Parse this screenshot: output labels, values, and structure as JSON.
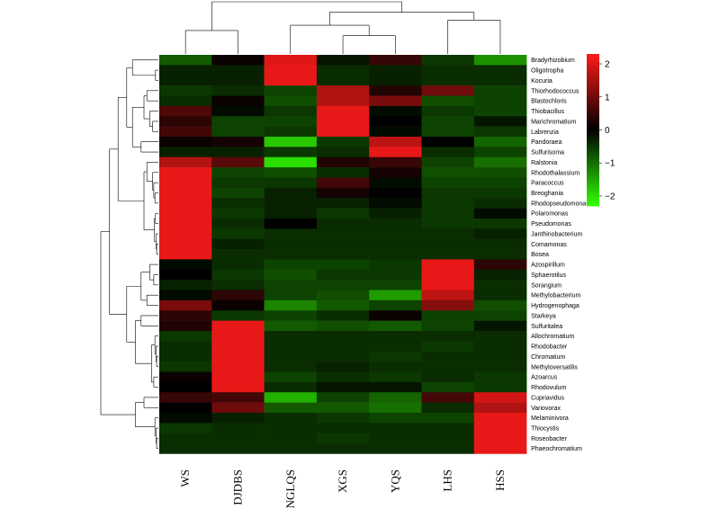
{
  "chart_data": {
    "type": "heatmap",
    "columns": [
      "WS",
      "DJDBS",
      "NGLQS",
      "XGS",
      "YQS",
      "LHS",
      "HSS"
    ],
    "rows": [
      "Bradyrhizobium",
      "Oligotropha",
      "Kocuria",
      "Thiorhodococcus",
      "Blastochloris",
      "Thiobacillus",
      "Marichromatium",
      "Labrenzia",
      "Pandoraea",
      "Sulfurisoma",
      "Ralstonia",
      "Rhodothalassium",
      "Paracoccus",
      "Breoghania",
      "Rhodopseudomonas",
      "Polaromonas",
      "Pseudomonas",
      "Janthinobacterium",
      "Comamonas",
      "Bosea",
      "Azospirillum",
      "Sphaerotilus",
      "Sorangium",
      "Methylobacterium",
      "Hydrogenophaga",
      "Starkeya",
      "Sulfuritalea",
      "Allochromatium",
      "Rhodobacter",
      "Chromatium",
      "Methyloversatilis",
      "Azoarcus",
      "Rhodovulum",
      "Cupriavidus",
      "Variovorax",
      "Melaminivora",
      "Thiocystis",
      "Roseobacter",
      "Phaeochromatium"
    ],
    "values": [
      [
        -0.8,
        0.1,
        2.0,
        -0.2,
        0.5,
        -0.5,
        -1.3
      ],
      [
        -0.3,
        -0.3,
        2.1,
        -0.4,
        -0.3,
        -0.4,
        -0.4
      ],
      [
        -0.3,
        -0.3,
        2.1,
        -0.4,
        -0.3,
        -0.4,
        -0.4
      ],
      [
        -0.5,
        -0.4,
        -0.6,
        1.6,
        0.3,
        1.0,
        -0.6
      ],
      [
        -0.4,
        0.1,
        -0.7,
        1.6,
        1.1,
        -0.7,
        -0.6
      ],
      [
        0.7,
        -0.1,
        -0.5,
        2.1,
        -0.1,
        -0.5,
        -0.6
      ],
      [
        0.4,
        -0.6,
        -0.6,
        2.1,
        0.0,
        -0.6,
        -0.2
      ],
      [
        0.6,
        -0.6,
        -0.5,
        2.1,
        -0.1,
        -0.6,
        -0.5
      ],
      [
        0.1,
        0.2,
        -1.8,
        -0.5,
        1.7,
        0.0,
        -0.9
      ],
      [
        -0.3,
        -0.3,
        -0.5,
        -0.4,
        2.1,
        -0.4,
        -0.6
      ],
      [
        1.6,
        0.8,
        -2.0,
        0.3,
        0.5,
        -0.6,
        -1.0
      ],
      [
        2.1,
        -0.6,
        -0.7,
        -0.4,
        0.2,
        -0.7,
        -0.7
      ],
      [
        2.1,
        -0.5,
        -0.5,
        0.6,
        -0.1,
        -0.6,
        -0.6
      ],
      [
        2.1,
        -0.6,
        -0.3,
        0.2,
        0.0,
        -0.5,
        -0.5
      ],
      [
        2.1,
        -0.4,
        -0.3,
        -0.3,
        -0.1,
        -0.5,
        -0.4
      ],
      [
        2.1,
        -0.5,
        -0.3,
        -0.5,
        -0.3,
        -0.5,
        -0.1
      ],
      [
        2.1,
        -0.4,
        0.0,
        -0.4,
        -0.4,
        -0.5,
        -0.5
      ],
      [
        2.1,
        -0.5,
        -0.4,
        -0.4,
        -0.4,
        -0.4,
        -0.3
      ],
      [
        2.1,
        -0.3,
        -0.4,
        -0.4,
        -0.4,
        -0.4,
        -0.4
      ],
      [
        2.1,
        -0.4,
        -0.4,
        -0.4,
        -0.4,
        -0.4,
        -0.4
      ],
      [
        -0.1,
        -0.4,
        -0.6,
        -0.6,
        -0.5,
        2.1,
        0.4
      ],
      [
        0.0,
        -0.5,
        -0.7,
        -0.5,
        -0.5,
        2.1,
        -0.3
      ],
      [
        -0.3,
        -0.4,
        -0.6,
        -0.6,
        -0.6,
        2.1,
        -0.4
      ],
      [
        -0.1,
        0.4,
        -0.6,
        -0.7,
        -1.4,
        1.7,
        -0.4
      ],
      [
        1.1,
        0.1,
        -1.2,
        -0.8,
        -0.6,
        1.2,
        -0.7
      ],
      [
        0.4,
        -0.5,
        -0.6,
        -0.4,
        0.1,
        -0.6,
        -0.6
      ],
      [
        0.3,
        2.1,
        -0.8,
        -0.7,
        -0.8,
        -0.6,
        -0.2
      ],
      [
        -0.5,
        2.1,
        -0.4,
        -0.4,
        -0.4,
        -0.4,
        -0.4
      ],
      [
        -0.4,
        2.1,
        -0.4,
        -0.4,
        -0.4,
        -0.5,
        -0.4
      ],
      [
        -0.4,
        2.1,
        -0.4,
        -0.4,
        -0.5,
        -0.4,
        -0.4
      ],
      [
        -0.5,
        2.1,
        -0.4,
        -0.3,
        -0.4,
        -0.4,
        -0.4
      ],
      [
        0.1,
        2.1,
        -0.6,
        -0.4,
        -0.5,
        -0.4,
        -0.5
      ],
      [
        0.0,
        2.1,
        -0.4,
        -0.2,
        -0.2,
        -0.6,
        -0.5
      ],
      [
        0.5,
        0.6,
        -1.6,
        -0.6,
        -0.9,
        0.6,
        1.9
      ],
      [
        0.0,
        1.0,
        -0.8,
        -0.8,
        -1.0,
        -0.4,
        1.6
      ],
      [
        -0.1,
        -0.3,
        -0.4,
        -0.5,
        -0.6,
        -0.6,
        2.1
      ],
      [
        -0.5,
        -0.4,
        -0.4,
        -0.4,
        -0.4,
        -0.4,
        2.1
      ],
      [
        -0.4,
        -0.4,
        -0.4,
        -0.5,
        -0.4,
        -0.4,
        2.1
      ],
      [
        -0.4,
        -0.4,
        -0.4,
        -0.4,
        -0.4,
        -0.4,
        2.1
      ]
    ],
    "color_scale": {
      "min": -2.3,
      "max": 2.3,
      "low_color": "#33ff00",
      "mid_color": "#000000",
      "high_color": "#ff1a1a"
    },
    "colorbar_ticks": [
      2,
      1,
      0,
      -1,
      -2
    ],
    "colorbar_tick_labels": [
      "2",
      "1",
      "0",
      "−1",
      "−2"
    ],
    "row_dendrogram": true,
    "column_dendrogram": true,
    "legend_position": "top-right"
  }
}
